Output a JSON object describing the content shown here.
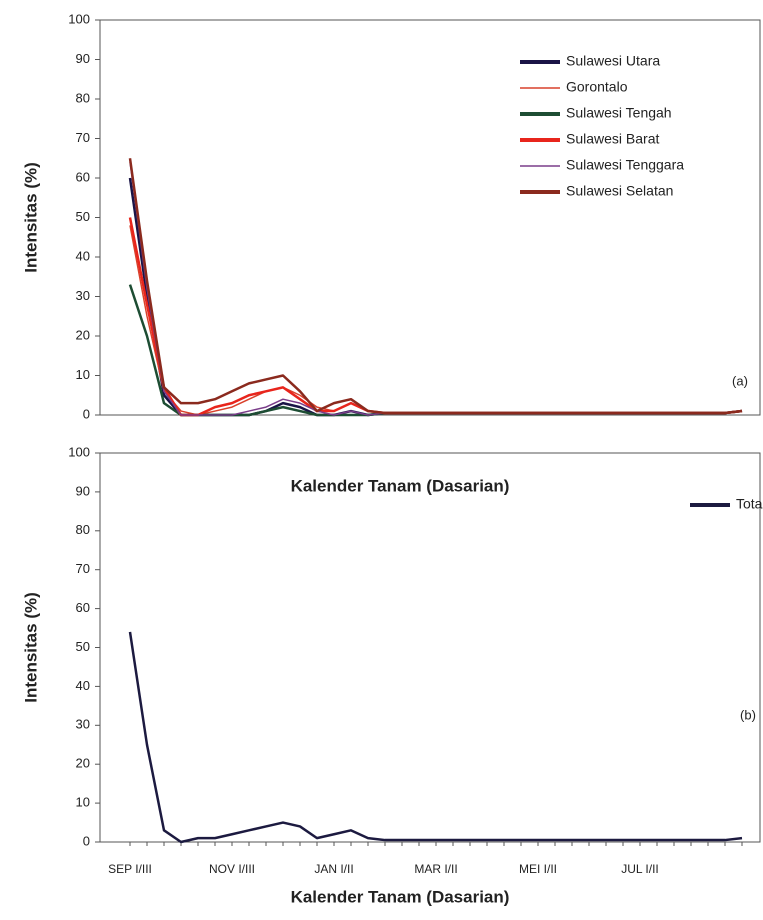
{
  "chart_data": [
    {
      "type": "line",
      "ylabel": "Intensitas (%)",
      "xlabel": "Kalender Tanam (Dasarian)",
      "annotation": "(a)",
      "ylim": [
        0,
        100
      ],
      "yticks": [
        0,
        10,
        20,
        30,
        40,
        50,
        60,
        70,
        80,
        90,
        100
      ],
      "legend": "upper right",
      "series": [
        {
          "name": "Sulawesi Utara",
          "color": "#1a1446",
          "values": [
            60,
            30,
            5,
            0,
            0,
            0,
            0,
            0,
            1,
            3,
            2,
            0,
            0,
            1,
            0,
            0.5,
            0.5,
            0.5,
            0.5,
            0.5,
            0.5,
            0.5,
            0.5,
            0.5,
            0.5,
            0.5,
            0.5,
            0.5,
            0.5,
            0.5,
            0.5,
            0.5,
            0.5,
            0.5,
            0.5,
            0.5,
            1
          ]
        },
        {
          "name": "Gorontalo",
          "color": "#d9412b",
          "values": [
            48,
            25,
            6,
            1,
            0,
            1,
            2,
            4,
            6,
            7,
            5,
            2,
            1,
            3,
            1,
            0.5,
            0.5,
            0.5,
            0.5,
            0.5,
            0.5,
            0.5,
            0.5,
            0.5,
            0.5,
            0.5,
            0.5,
            0.5,
            0.5,
            0.5,
            0.5,
            0.5,
            0.5,
            0.5,
            0.5,
            0.5,
            1
          ]
        },
        {
          "name": "Sulawesi Tengah",
          "color": "#1d4d33",
          "values": [
            33,
            20,
            3,
            0,
            0,
            0,
            0,
            0,
            1,
            2,
            1,
            0,
            0,
            0,
            0,
            0.5,
            0.5,
            0.5,
            0.5,
            0.5,
            0.5,
            0.5,
            0.5,
            0.5,
            0.5,
            0.5,
            0.5,
            0.5,
            0.5,
            0.5,
            0.5,
            0.5,
            0.5,
            0.5,
            0.5,
            0.5,
            1
          ]
        },
        {
          "name": "Sulawesi Barat",
          "color": "#e8251c",
          "values": [
            50,
            28,
            7,
            0,
            0,
            2,
            3,
            5,
            6,
            7,
            4,
            1,
            1,
            3,
            1,
            0.5,
            0.5,
            0.5,
            0.5,
            0.5,
            0.5,
            0.5,
            0.5,
            0.5,
            0.5,
            0.5,
            0.5,
            0.5,
            0.5,
            0.5,
            0.5,
            0.5,
            0.5,
            0.5,
            0.5,
            0.5,
            1
          ]
        },
        {
          "name": "Sulawesi Tenggara",
          "color": "#7a3d8a",
          "values": [
            64,
            32,
            6,
            0,
            0,
            0,
            0,
            1,
            2,
            4,
            3,
            1,
            0,
            1,
            0,
            0.5,
            0.5,
            0.5,
            0.5,
            0.5,
            0.5,
            0.5,
            0.5,
            0.5,
            0.5,
            0.5,
            0.5,
            0.5,
            0.5,
            0.5,
            0.5,
            0.5,
            0.5,
            0.5,
            0.5,
            0.5,
            1
          ]
        },
        {
          "name": "Sulawesi Selatan",
          "color": "#8b2a1e",
          "values": [
            65,
            34,
            7,
            3,
            3,
            4,
            6,
            8,
            9,
            10,
            6,
            1,
            3,
            4,
            1,
            0.5,
            0.5,
            0.5,
            0.5,
            0.5,
            0.5,
            0.5,
            0.5,
            0.5,
            0.5,
            0.5,
            0.5,
            0.5,
            0.5,
            0.5,
            0.5,
            0.5,
            0.5,
            0.5,
            0.5,
            0.5,
            1
          ]
        }
      ]
    },
    {
      "type": "line",
      "ylabel": "Intensitas (%)",
      "xlabel": "Kalender Tanam (Dasarian)",
      "annotation": "(b)",
      "ylim": [
        0,
        100
      ],
      "yticks": [
        0,
        10,
        20,
        30,
        40,
        50,
        60,
        70,
        80,
        90,
        100
      ],
      "legend": "upper right",
      "categories": [
        "SEP I/III",
        null,
        null,
        null,
        null,
        null,
        "NOV I/III",
        null,
        null,
        null,
        null,
        null,
        "JAN I/II",
        null,
        null,
        null,
        null,
        null,
        "MAR I/II",
        null,
        null,
        null,
        null,
        null,
        "MEI I/II",
        null,
        null,
        null,
        null,
        null,
        "JUL I/II",
        null,
        null,
        null,
        null,
        null,
        null
      ],
      "series": [
        {
          "name": "Total",
          "color": "#1c1a40",
          "values": [
            54,
            25,
            3,
            0,
            1,
            1,
            2,
            3,
            4,
            5,
            4,
            1,
            2,
            3,
            1,
            0.5,
            0.5,
            0.5,
            0.5,
            0.5,
            0.5,
            0.5,
            0.5,
            0.5,
            0.5,
            0.5,
            0.5,
            0.5,
            0.5,
            0.5,
            0.5,
            0.5,
            0.5,
            0.5,
            0.5,
            0.5,
            1
          ]
        }
      ]
    }
  ]
}
